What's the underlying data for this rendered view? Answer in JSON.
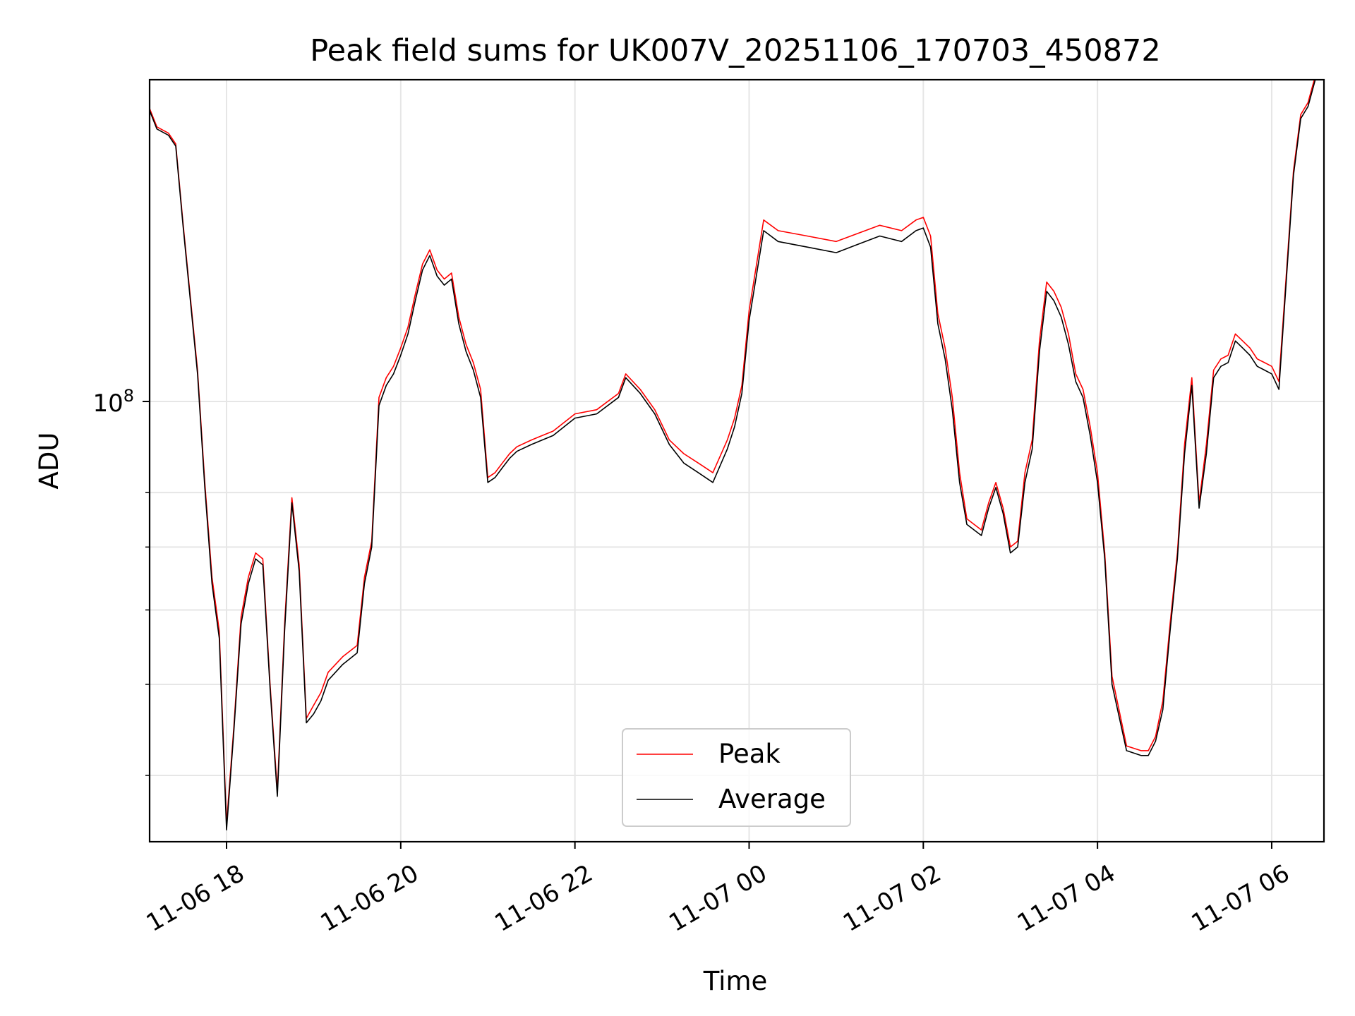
{
  "chart_data": {
    "type": "line",
    "title": "Peak field sums for UK007V_20251106_170703_450872",
    "xlabel": "Time",
    "ylabel": "ADU",
    "yscale": "log",
    "grid": true,
    "legend_position": "lower-center",
    "x_ticks": [
      "11-06 18",
      "11-06 20",
      "11-06 22",
      "11-07 00",
      "11-07 02",
      "11-07 04",
      "11-07 06"
    ],
    "y_major_tick": {
      "value": 100000000,
      "label_base": "10",
      "label_exp": "8"
    },
    "y_minor_ticks": [
      40000000,
      50000000,
      60000000,
      70000000,
      80000000
    ],
    "xlim": [
      "2025-11-06 17:07",
      "2025-11-07 06:36"
    ],
    "ylim": [
      34000000,
      220000000
    ],
    "x": [
      "2025-11-06 17:07",
      "2025-11-06 17:12",
      "2025-11-06 17:20",
      "2025-11-06 17:25",
      "2025-11-06 17:30",
      "2025-11-06 17:40",
      "2025-11-06 17:45",
      "2025-11-06 17:50",
      "2025-11-06 17:55",
      "2025-11-06 18:00",
      "2025-11-06 18:05",
      "2025-11-06 18:10",
      "2025-11-06 18:15",
      "2025-11-06 18:20",
      "2025-11-06 18:25",
      "2025-11-06 18:30",
      "2025-11-06 18:35",
      "2025-11-06 18:40",
      "2025-11-06 18:45",
      "2025-11-06 18:50",
      "2025-11-06 18:55",
      "2025-11-06 19:00",
      "2025-11-06 19:05",
      "2025-11-06 19:10",
      "2025-11-06 19:20",
      "2025-11-06 19:30",
      "2025-11-06 19:35",
      "2025-11-06 19:40",
      "2025-11-06 19:45",
      "2025-11-06 19:50",
      "2025-11-06 19:55",
      "2025-11-06 20:00",
      "2025-11-06 20:05",
      "2025-11-06 20:10",
      "2025-11-06 20:15",
      "2025-11-06 20:20",
      "2025-11-06 20:25",
      "2025-11-06 20:30",
      "2025-11-06 20:35",
      "2025-11-06 20:40",
      "2025-11-06 20:45",
      "2025-11-06 20:50",
      "2025-11-06 20:55",
      "2025-11-06 21:00",
      "2025-11-06 21:05",
      "2025-11-06 21:10",
      "2025-11-06 21:15",
      "2025-11-06 21:20",
      "2025-11-06 21:30",
      "2025-11-06 21:45",
      "2025-11-06 22:00",
      "2025-11-06 22:15",
      "2025-11-06 22:30",
      "2025-11-06 22:35",
      "2025-11-06 22:45",
      "2025-11-06 22:55",
      "2025-11-06 23:05",
      "2025-11-06 23:15",
      "2025-11-06 23:25",
      "2025-11-06 23:35",
      "2025-11-06 23:45",
      "2025-11-06 23:50",
      "2025-11-06 23:55",
      "2025-11-07 00:00",
      "2025-11-07 00:10",
      "2025-11-07 00:20",
      "2025-11-07 00:40",
      "2025-11-07 01:00",
      "2025-11-07 01:15",
      "2025-11-07 01:30",
      "2025-11-07 01:45",
      "2025-11-07 01:55",
      "2025-11-07 02:00",
      "2025-11-07 02:05",
      "2025-11-07 02:10",
      "2025-11-07 02:15",
      "2025-11-07 02:20",
      "2025-11-07 02:25",
      "2025-11-07 02:30",
      "2025-11-07 02:40",
      "2025-11-07 02:45",
      "2025-11-07 02:50",
      "2025-11-07 02:55",
      "2025-11-07 03:00",
      "2025-11-07 03:05",
      "2025-11-07 03:10",
      "2025-11-07 03:15",
      "2025-11-07 03:20",
      "2025-11-07 03:25",
      "2025-11-07 03:30",
      "2025-11-07 03:35",
      "2025-11-07 03:40",
      "2025-11-07 03:45",
      "2025-11-07 03:50",
      "2025-11-07 03:55",
      "2025-11-07 04:00",
      "2025-11-07 04:05",
      "2025-11-07 04:10",
      "2025-11-07 04:20",
      "2025-11-07 04:30",
      "2025-11-07 04:35",
      "2025-11-07 04:40",
      "2025-11-07 04:45",
      "2025-11-07 04:50",
      "2025-11-07 04:55",
      "2025-11-07 05:00",
      "2025-11-07 05:05",
      "2025-11-07 05:10",
      "2025-11-07 05:15",
      "2025-11-07 05:20",
      "2025-11-07 05:25",
      "2025-11-07 05:30",
      "2025-11-07 05:35",
      "2025-11-07 05:40",
      "2025-11-07 05:45",
      "2025-11-07 05:50",
      "2025-11-07 05:55",
      "2025-11-07 06:00",
      "2025-11-07 06:05",
      "2025-11-07 06:10",
      "2025-11-07 06:15",
      "2025-11-07 06:20",
      "2025-11-07 06:25",
      "2025-11-07 06:30",
      "2025-11-07 06:36"
    ],
    "series": [
      {
        "name": "Peak",
        "color": "#ff0000",
        "values": [
          205000000,
          196000000,
          193000000,
          188000000,
          155000000,
          108000000,
          82000000,
          65000000,
          57000000,
          35500000,
          45000000,
          59000000,
          65000000,
          69000000,
          68000000,
          50000000,
          38500000,
          58000000,
          79000000,
          67000000,
          46000000,
          47500000,
          49000000,
          51500000,
          53500000,
          55000000,
          65000000,
          71000000,
          101000000,
          106000000,
          109000000,
          114000000,
          120000000,
          130000000,
          140000000,
          145000000,
          138000000,
          135000000,
          137000000,
          123000000,
          115000000,
          110000000,
          103000000,
          83000000,
          84000000,
          86000000,
          88000000,
          89500000,
          91000000,
          93000000,
          97000000,
          98000000,
          102000000,
          107000000,
          103000000,
          98000000,
          91000000,
          88000000,
          86000000,
          84000000,
          91000000,
          96000000,
          104000000,
          125000000,
          156000000,
          152000000,
          150000000,
          148000000,
          151000000,
          154000000,
          152000000,
          156000000,
          157000000,
          150000000,
          124000000,
          114000000,
          101000000,
          84000000,
          75000000,
          73000000,
          78000000,
          82000000,
          77000000,
          70000000,
          71000000,
          84000000,
          91000000,
          116000000,
          134000000,
          131000000,
          126000000,
          118000000,
          107000000,
          103000000,
          94000000,
          84000000,
          69000000,
          51000000,
          43000000,
          42500000,
          42500000,
          44000000,
          48000000,
          58000000,
          69000000,
          90000000,
          106000000,
          78000000,
          90000000,
          108000000,
          111000000,
          112000000,
          118000000,
          116000000,
          114000000,
          111000000,
          110000000,
          109000000,
          105000000,
          136000000,
          176000000,
          202000000,
          208000000,
          222000000,
          225000000
        ]
      },
      {
        "name": "Average",
        "color": "#000000",
        "values": [
          204000000,
          195000000,
          192000000,
          187000000,
          154000000,
          107000000,
          81000000,
          64000000,
          56000000,
          35000000,
          44500000,
          58000000,
          64000000,
          68000000,
          67000000,
          49500000,
          38000000,
          57000000,
          78000000,
          66000000,
          45500000,
          46500000,
          48000000,
          50500000,
          52500000,
          54000000,
          64000000,
          70000000,
          99000000,
          104000000,
          107000000,
          112000000,
          118000000,
          128000000,
          138000000,
          143000000,
          136000000,
          133000000,
          135000000,
          121000000,
          113000000,
          108000000,
          101000000,
          82000000,
          83000000,
          85000000,
          87000000,
          88500000,
          90000000,
          92000000,
          96000000,
          97000000,
          101000000,
          106000000,
          102000000,
          97000000,
          90000000,
          86000000,
          84000000,
          82000000,
          89000000,
          94000000,
          102000000,
          122000000,
          152000000,
          148000000,
          146000000,
          144000000,
          147000000,
          150000000,
          148000000,
          152000000,
          153000000,
          146000000,
          121000000,
          111000000,
          98000000,
          82000000,
          74000000,
          72000000,
          77000000,
          81000000,
          76000000,
          69000000,
          70000000,
          82000000,
          89000000,
          113000000,
          131000000,
          128000000,
          123000000,
          115000000,
          105000000,
          101000000,
          92000000,
          82000000,
          68000000,
          50000000,
          42500000,
          42000000,
          42000000,
          43500000,
          47000000,
          57000000,
          68000000,
          88000000,
          104000000,
          77000000,
          88000000,
          106000000,
          109000000,
          110000000,
          116000000,
          114000000,
          112000000,
          109000000,
          108000000,
          107000000,
          103000000,
          134000000,
          174000000,
          200000000,
          206000000,
          220000000,
          223000000
        ]
      }
    ]
  }
}
